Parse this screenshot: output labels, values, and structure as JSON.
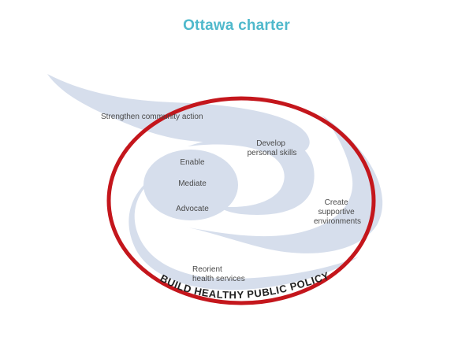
{
  "title": "Ottawa charter",
  "colors": {
    "title": "#4fb9cc",
    "ring": "#c4161c",
    "swirl": "#d6deec",
    "label": "#4a4a4a"
  },
  "diagram": {
    "strengthen_community_action": "Strengthen community action",
    "develop_personal_skills": [
      "Develop",
      "personal skills"
    ],
    "enable": "Enable",
    "mediate": "Mediate",
    "advocate": "Advocate",
    "create_supportive_environments": [
      "Create",
      "supportive",
      "environments"
    ],
    "reorient_health_services": [
      "Reorient",
      "health services"
    ],
    "ring_label": "BUILD HEALTHY PUBLIC POLICY"
  }
}
